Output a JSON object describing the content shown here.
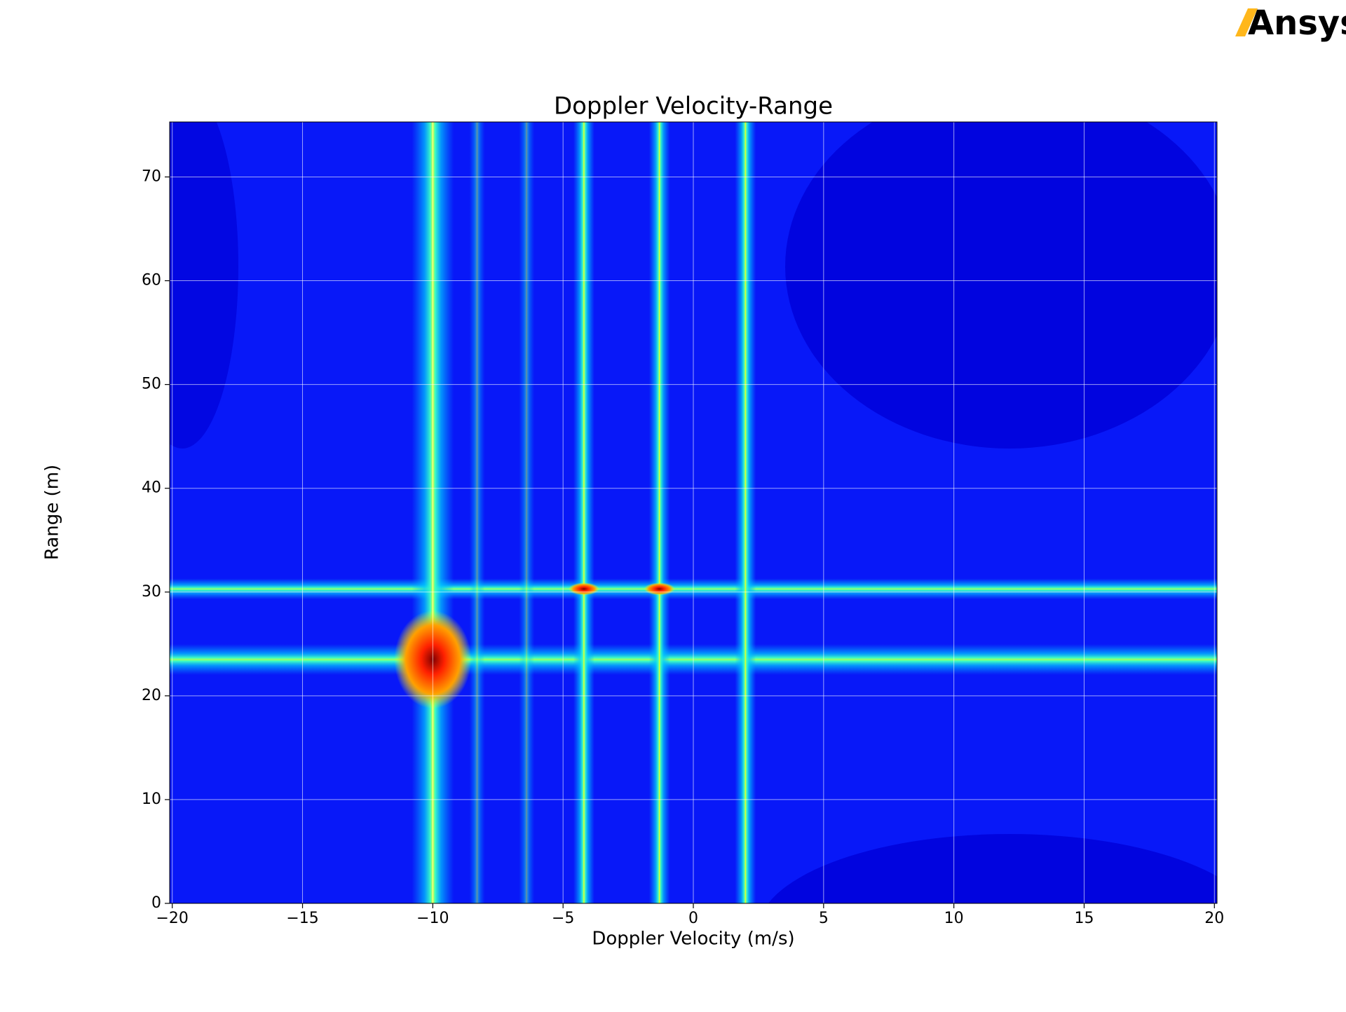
{
  "logo": "Ansys",
  "chart_data": {
    "type": "contour",
    "title": "Doppler Velocity-Range",
    "xlabel": "Doppler Velocity (m/s)",
    "ylabel": "Range (m)",
    "colormap": "jet",
    "grid": true,
    "xlim": [
      -20.1,
      20.1
    ],
    "ylim": [
      0,
      75.3
    ],
    "xticks": [
      {
        "value": -20,
        "label": "−20"
      },
      {
        "value": -15,
        "label": "−15"
      },
      {
        "value": -10,
        "label": "−10"
      },
      {
        "value": -5,
        "label": "−5"
      },
      0,
      5,
      10,
      15,
      20
    ],
    "yticks": [
      0,
      10,
      20,
      30,
      40,
      50,
      60,
      70
    ],
    "velocity_streaks": [
      -10,
      -4.2,
      -1.3,
      2.0,
      -8.3,
      -6.4
    ],
    "range_streaks": [
      23.5,
      30.3
    ],
    "peaks": {
      "x": [
        -10,
        -4.2,
        -1.3
      ],
      "y": [
        23.5,
        30.3,
        30.3
      ]
    }
  }
}
